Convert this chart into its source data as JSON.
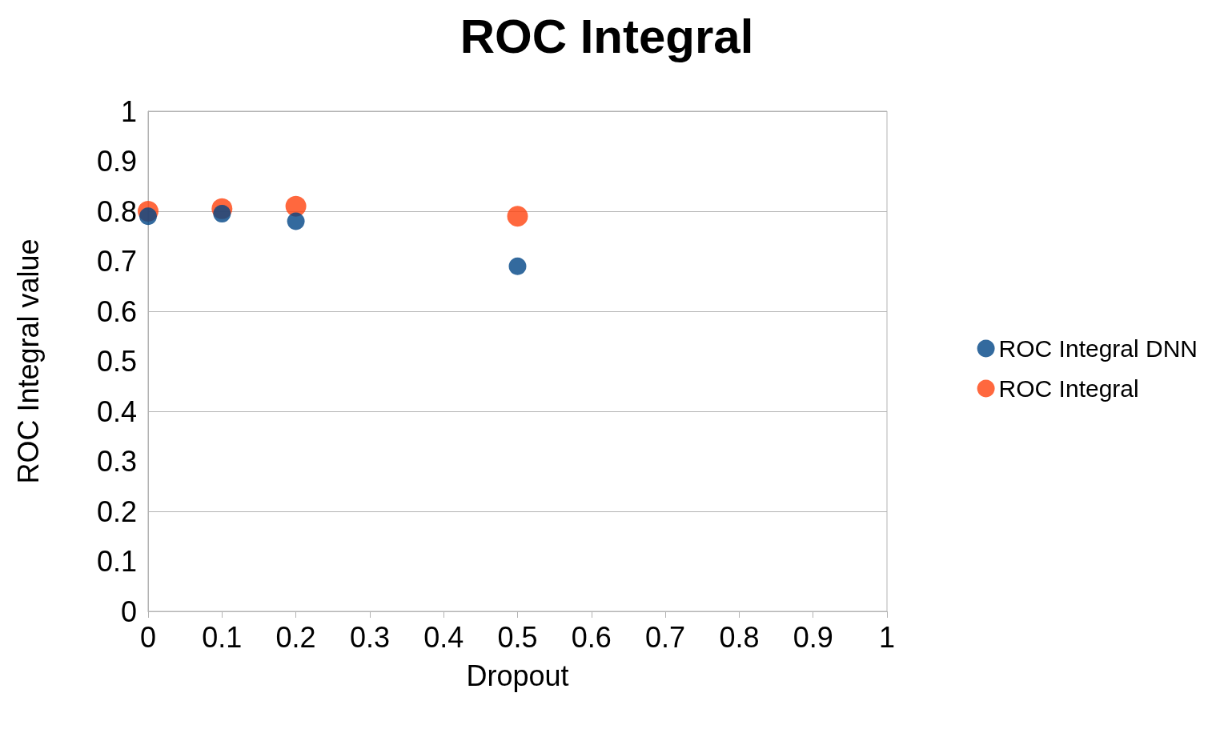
{
  "chart_data": {
    "type": "scatter",
    "title": "ROC Integral",
    "xlabel": "Dropout",
    "ylabel": "ROC Integral value",
    "x": [
      0,
      0.1,
      0.2,
      0.5
    ],
    "series": [
      {
        "name": "ROC Integral DNN",
        "color": "#004586",
        "values": [
          0.79,
          0.795,
          0.78,
          0.69
        ]
      },
      {
        "name": "ROC Integral",
        "color": "#ff420e",
        "values": [
          0.8,
          0.805,
          0.81,
          0.79
        ]
      }
    ],
    "xlim": [
      0,
      1
    ],
    "xticks": [
      0,
      0.1,
      0.2,
      0.3,
      0.4,
      0.5,
      0.6,
      0.7,
      0.8,
      0.9,
      1
    ],
    "ylim": [
      0,
      1
    ],
    "yticks": [
      0,
      0.1,
      0.2,
      0.3,
      0.4,
      0.5,
      0.6,
      0.7,
      0.8,
      0.9,
      1
    ],
    "grid": "y",
    "legend": "right",
    "marker": "circle"
  }
}
